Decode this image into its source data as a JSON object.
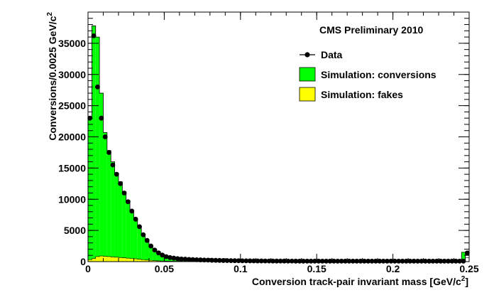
{
  "chart_data": {
    "type": "histogram",
    "title": "CMS Preliminary 2010",
    "xlabel": "Conversion track-pair invariant mass [GeV/c",
    "xlabel_sup": "2",
    "xlabel_end": "]",
    "ylabel": "Conversions/0.0025 GeV/c",
    "ylabel_sup": "2",
    "xlim": [
      0,
      0.25
    ],
    "ylim": [
      0,
      40000
    ],
    "bin_width": 0.0025,
    "x_ticks": [
      "0",
      "0.05",
      "0.1",
      "0.15",
      "0.2",
      "0.25"
    ],
    "y_ticks": [
      "0",
      "5000",
      "10000",
      "15000",
      "20000",
      "25000",
      "30000",
      "35000"
    ],
    "legend_position": "top-right",
    "legend": [
      {
        "label": "Data",
        "style": "marker"
      },
      {
        "label": "Simulation: conversions",
        "style": "fill",
        "color": "#00ff00"
      },
      {
        "label": "Simulation: fakes",
        "style": "fill",
        "color": "#ffff00"
      }
    ],
    "series": [
      {
        "name": "Simulation: conversions",
        "kind": "stacked-fill",
        "color": "#00ff00",
        "values": [
          23000,
          37800,
          36000,
          27000,
          20700,
          17800,
          16000,
          14200,
          12800,
          11200,
          9800,
          8000,
          6700,
          5600,
          4300,
          3400,
          2650,
          2000,
          1580,
          1200,
          920,
          740,
          640,
          560,
          500,
          450,
          400,
          360,
          330,
          300,
          280,
          260,
          240,
          220,
          200,
          190,
          180,
          170,
          160,
          150,
          140,
          135,
          130,
          125,
          120,
          115,
          110,
          105,
          100,
          100,
          95,
          95,
          90,
          90,
          85,
          85,
          80,
          80,
          80,
          80,
          80,
          80,
          80,
          80,
          80,
          80,
          80,
          80,
          80,
          80,
          80,
          80,
          80,
          80,
          80,
          80,
          80,
          80,
          80,
          80,
          80,
          80,
          80,
          80,
          80,
          80,
          80,
          80,
          80,
          80,
          80,
          80,
          80,
          80,
          80,
          80,
          80,
          80,
          1500
        ]
      },
      {
        "name": "Simulation: fakes",
        "kind": "stacked-fill",
        "color": "#ffff00",
        "values": [
          300,
          500,
          800,
          900,
          850,
          800,
          750,
          700,
          650,
          600,
          550,
          500,
          450,
          380,
          300,
          250,
          200,
          160,
          120,
          100,
          80,
          70,
          60,
          50,
          45,
          40,
          35,
          30,
          30,
          30,
          30,
          30,
          30,
          30,
          30,
          30,
          30,
          30,
          30,
          30,
          30,
          30,
          30,
          30,
          30,
          30,
          30,
          30,
          30,
          30,
          30,
          30,
          30,
          30,
          30,
          30,
          30,
          30,
          30,
          30,
          30,
          30,
          30,
          30,
          30,
          30,
          30,
          30,
          30,
          30,
          30,
          30,
          30,
          30,
          30,
          30,
          30,
          30,
          30,
          30,
          30,
          30,
          30,
          30,
          30,
          30,
          30,
          30,
          30,
          30,
          30,
          30,
          30,
          30,
          30,
          30,
          30,
          30,
          30,
          600
        ]
      },
      {
        "name": "Data",
        "kind": "points",
        "color": "#000000",
        "values": [
          23000,
          36200,
          28000,
          23000,
          20000,
          17500,
          15500,
          14000,
          12500,
          11000,
          9600,
          8100,
          6800,
          5600,
          4300,
          3400,
          2500,
          1850,
          1400,
          1050,
          800,
          650,
          560,
          480,
          430,
          390,
          350,
          320,
          300,
          280,
          260,
          240,
          220,
          205,
          190,
          180,
          170,
          160,
          150,
          140,
          130,
          125,
          120,
          115,
          110,
          105,
          100,
          100,
          95,
          95,
          90,
          90,
          85,
          85,
          80,
          80,
          80,
          80,
          80,
          80,
          80,
          80,
          80,
          80,
          80,
          80,
          80,
          80,
          80,
          80,
          80,
          80,
          80,
          80,
          80,
          80,
          80,
          80,
          80,
          80,
          80,
          80,
          80,
          80,
          80,
          80,
          80,
          80,
          80,
          80,
          80,
          80,
          80,
          80,
          80,
          80,
          80,
          80,
          80,
          1400
        ]
      }
    ]
  }
}
